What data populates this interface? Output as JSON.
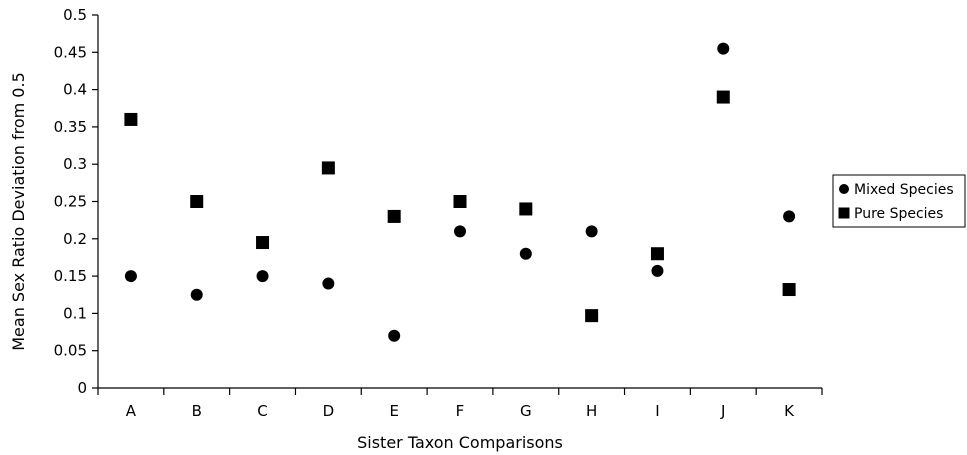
{
  "chart_data": {
    "type": "scatter",
    "xlabel": "Sister Taxon Comparisons",
    "ylabel": "Mean Sex Ratio Deviation from 0.5",
    "categories": [
      "A",
      "B",
      "C",
      "D",
      "E",
      "F",
      "G",
      "H",
      "I",
      "J",
      "K"
    ],
    "ylim": [
      0,
      0.5
    ],
    "yticks": [
      "0",
      "0.05",
      "0.1",
      "0.15",
      "0.2",
      "0.25",
      "0.3",
      "0.35",
      "0.4",
      "0.45",
      "0.5"
    ],
    "grid": false,
    "legend_position": "right",
    "series": [
      {
        "name": "Mixed Species",
        "marker": "circle",
        "color": "#000000",
        "values": [
          0.15,
          0.125,
          0.15,
          0.14,
          0.07,
          0.21,
          0.18,
          0.21,
          0.157,
          0.455,
          0.23
        ]
      },
      {
        "name": "Pure Species",
        "marker": "square",
        "color": "#000000",
        "values": [
          0.36,
          0.25,
          0.195,
          0.295,
          0.23,
          0.25,
          0.24,
          0.097,
          0.18,
          0.39,
          0.132
        ]
      }
    ]
  }
}
